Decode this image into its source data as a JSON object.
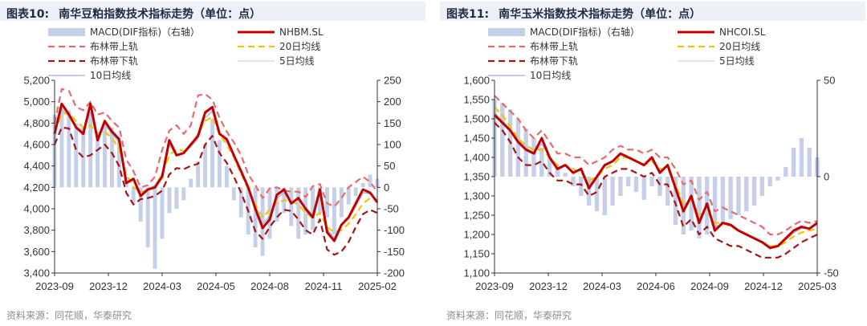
{
  "panels": [
    {
      "figure_label": "图表10:",
      "title": "南华豆粕指数技术指标走势（单位：点）",
      "source": "资料来源：同花顺，华泰研究",
      "legend": {
        "macd": "MACD(DIF指标)（右轴）",
        "main": "NHBM.SL",
        "upper": "布林带上轨",
        "ma20": "20日均线",
        "lower": "布林带下轨",
        "ma5": "5日均线",
        "ma10": "10日均线"
      },
      "colors": {
        "main": "#c00000",
        "upper": "#e86a6a",
        "lower": "#a31515",
        "ma20": "#f5c400",
        "ma5": "#dde3f0",
        "ma10": "#a8bbdc",
        "macd": "#c5d0e8"
      },
      "chart_data": {
        "type": "line",
        "left_axis": {
          "ticks": [
            "5,200",
            "5,000",
            "4,800",
            "4,600",
            "4,400",
            "4,200",
            "4,000",
            "3,800",
            "3,600",
            "3,400"
          ],
          "min": 3400,
          "max": 5200
        },
        "right_axis": {
          "ticks": [
            "250",
            "200",
            "150",
            "100",
            "50",
            "0",
            "-50",
            "-100",
            "-150",
            "-200"
          ],
          "min": -200,
          "max": 250
        },
        "x_ticks": [
          "2023-09",
          "2023-12",
          "2024-03",
          "2024-05",
          "2024-08",
          "2024-11",
          "2025-02"
        ],
        "series": [
          {
            "key": "main",
            "values": [
              4700,
              4980,
              4880,
              4760,
              4700,
              4980,
              4640,
              4820,
              4720,
              4650,
              4240,
              4280,
              4120,
              4180,
              4200,
              4300,
              4640,
              4500,
              4520,
              4600,
              4680,
              4900,
              4950,
              4700,
              4650,
              4500,
              4350,
              4200,
              4000,
              3820,
              3900,
              4130,
              4180,
              4050,
              4100,
              4000,
              3920,
              4180,
              3780,
              3700,
              3850,
              3920,
              4050,
              4180,
              4150,
              4060
            ]
          },
          {
            "key": "upper",
            "values": [
              4800,
              5120,
              5100,
              4950,
              4920,
              5000,
              4880,
              4900,
              4820,
              4760,
              4460,
              4350,
              4200,
              4220,
              4300,
              4550,
              4730,
              4780,
              4700,
              4780,
              5060,
              5070,
              5020,
              4850,
              4720,
              4620,
              4500,
              4320,
              4220,
              4100,
              4190,
              4200,
              4170,
              4160,
              4160,
              4110,
              4210,
              4230,
              4050,
              4020,
              4100,
              4200,
              4250,
              4300,
              4250,
              4160
            ]
          },
          {
            "key": "lower",
            "values": [
              4600,
              4760,
              4750,
              4550,
              4480,
              4500,
              4550,
              4600,
              4520,
              4400,
              4150,
              4040,
              4090,
              4100,
              4120,
              4170,
              4320,
              4380,
              4370,
              4400,
              4420,
              4600,
              4680,
              4520,
              4430,
              4300,
              4150,
              3980,
              3790,
              3720,
              3830,
              3920,
              3990,
              3980,
              3900,
              3800,
              3760,
              3900,
              3620,
              3570,
              3600,
              3690,
              3830,
              3950,
              3990,
              3960
            ]
          },
          {
            "key": "ma20",
            "values": [
              4720,
              4880,
              4900,
              4820,
              4760,
              4780,
              4700,
              4720,
              4660,
              4560,
              4320,
              4200,
              4160,
              4160,
              4200,
              4330,
              4500,
              4560,
              4540,
              4590,
              4700,
              4820,
              4860,
              4700,
              4600,
              4480,
              4330,
              4180,
              4040,
              3920,
              3990,
              4060,
              4080,
              4070,
              4040,
              3960,
              3920,
              3960,
              3830,
              3780,
              3800,
              3860,
              3950,
              4050,
              4100,
              4080
            ]
          },
          {
            "key": "ma5",
            "values": [
              4700,
              4960,
              4870,
              4760,
              4710,
              4960,
              4650,
              4810,
              4710,
              4640,
              4260,
              4280,
              4140,
              4180,
              4210,
              4310,
              4630,
              4500,
              4520,
              4590,
              4670,
              4880,
              4930,
              4700,
              4650,
              4500,
              4350,
              4210,
              4010,
              3830,
              3910,
              4120,
              4170,
              4050,
              4100,
              4010,
              3930,
              4170,
              3790,
              3710,
              3850,
              3920,
              4040,
              4170,
              4150,
              4070
            ]
          },
          {
            "key": "ma10",
            "values": [
              4710,
              4930,
              4860,
              4760,
              4730,
              4900,
              4660,
              4790,
              4700,
              4620,
              4290,
              4260,
              4160,
              4180,
              4220,
              4330,
              4600,
              4500,
              4520,
              4580,
              4660,
              4850,
              4910,
              4700,
              4630,
              4490,
              4340,
              4200,
              4030,
              3860,
              3930,
              4100,
              4150,
              4060,
              4090,
              4010,
              3940,
              4130,
              3810,
              3730,
              3850,
              3910,
              4020,
              4150,
              4140,
              4070
            ]
          }
        ],
        "macd": [
          170,
          190,
          180,
          150,
          140,
          170,
          130,
          150,
          140,
          110,
          20,
          -40,
          -80,
          -140,
          -190,
          -120,
          -60,
          -50,
          -30,
          20,
          60,
          100,
          160,
          110,
          50,
          -30,
          -70,
          -110,
          -140,
          -160,
          -120,
          -80,
          -60,
          -90,
          -120,
          -110,
          -100,
          -60,
          -70,
          -110,
          -70,
          -40,
          -20,
          10,
          30,
          20
        ]
      }
    },
    {
      "figure_label": "图表11:",
      "title": "南华玉米指数技术指标走势（单位：点）",
      "source": "资料来源：同花顺，华泰研究",
      "legend": {
        "macd": "MACD(DIF指标)（右轴）",
        "main": "NHCOI.SL",
        "upper": "布林带上轨",
        "ma20": "20日均线",
        "lower": "布林带下轨",
        "ma5": "5日均线",
        "ma10": "10日均线"
      },
      "colors": {
        "main": "#c00000",
        "upper": "#e86a6a",
        "lower": "#a31515",
        "ma20": "#f5c400",
        "ma5": "#dde3f0",
        "ma10": "#a8bbdc",
        "macd": "#c5d0e8"
      },
      "chart_data": {
        "type": "line",
        "left_axis": {
          "ticks": [
            "1,600",
            "1,550",
            "1,500",
            "1,450",
            "1,400",
            "1,350",
            "1,300",
            "1,250",
            "1,200",
            "1,150",
            "1,100"
          ],
          "min": 1100,
          "max": 1600
        },
        "right_axis": {
          "ticks": [
            "50",
            "0",
            "-50"
          ],
          "min": -50,
          "max": 50
        },
        "x_ticks": [
          "2023-09",
          "2023-12",
          "2024-03",
          "2024-06",
          "2024-09",
          "2024-12",
          "2025-03"
        ],
        "series": [
          {
            "key": "main",
            "values": [
              1510,
              1490,
              1470,
              1440,
              1420,
              1410,
              1450,
              1400,
              1370,
              1380,
              1360,
              1370,
              1320,
              1350,
              1380,
              1390,
              1410,
              1400,
              1390,
              1380,
              1400,
              1360,
              1380,
              1320,
              1260,
              1300,
              1230,
              1280,
              1210,
              1230,
              1225,
              1210,
              1200,
              1190,
              1180,
              1165,
              1170,
              1190,
              1210,
              1220,
              1215,
              1230
            ]
          },
          {
            "key": "upper",
            "values": [
              1560,
              1540,
              1520,
              1500,
              1470,
              1450,
              1470,
              1440,
              1410,
              1410,
              1400,
              1400,
              1380,
              1390,
              1400,
              1420,
              1430,
              1420,
              1420,
              1410,
              1420,
              1400,
              1400,
              1370,
              1330,
              1340,
              1290,
              1310,
              1260,
              1270,
              1260,
              1250,
              1240,
              1230,
              1220,
              1200,
              1200,
              1210,
              1225,
              1235,
              1230,
              1235
            ]
          },
          {
            "key": "lower",
            "values": [
              1490,
              1470,
              1440,
              1400,
              1380,
              1380,
              1390,
              1360,
              1340,
              1340,
              1330,
              1330,
              1300,
              1310,
              1350,
              1360,
              1370,
              1370,
              1360,
              1350,
              1360,
              1330,
              1330,
              1280,
              1220,
              1240,
              1200,
              1220,
              1190,
              1180,
              1170,
              1170,
              1160,
              1150,
              1140,
              1140,
              1140,
              1150,
              1165,
              1180,
              1190,
              1200
            ]
          },
          {
            "key": "ma20",
            "values": [
              1530,
              1510,
              1480,
              1450,
              1430,
              1420,
              1420,
              1400,
              1380,
              1380,
              1370,
              1360,
              1340,
              1350,
              1370,
              1380,
              1400,
              1400,
              1390,
              1380,
              1390,
              1370,
              1370,
              1330,
              1280,
              1290,
              1250,
              1260,
              1230,
              1230,
              1220,
              1210,
              1200,
              1190,
              1180,
              1170,
              1170,
              1180,
              1195,
              1205,
              1210,
              1215
            ]
          },
          {
            "key": "ma5",
            "values": [
              1510,
              1490,
              1470,
              1440,
              1420,
              1410,
              1440,
              1400,
              1370,
              1380,
              1360,
              1370,
              1325,
              1350,
              1380,
              1390,
              1410,
              1400,
              1390,
              1380,
              1400,
              1360,
              1380,
              1320,
              1265,
              1300,
              1235,
              1275,
              1215,
              1230,
              1225,
              1210,
              1200,
              1190,
              1180,
              1167,
              1170,
              1190,
              1208,
              1220,
              1216,
              1228
            ]
          },
          {
            "key": "ma10",
            "values": [
              1515,
              1495,
              1472,
              1445,
              1424,
              1412,
              1435,
              1402,
              1374,
              1380,
              1362,
              1367,
              1330,
              1350,
              1378,
              1388,
              1406,
              1400,
              1390,
              1381,
              1396,
              1364,
              1376,
              1326,
              1272,
              1298,
              1240,
              1270,
              1220,
              1228,
              1222,
              1210,
              1200,
              1190,
              1180,
              1170,
              1170,
              1186,
              1204,
              1216,
              1215,
              1226
            ]
          }
        ],
        "macd": [
          40,
          38,
          35,
          30,
          25,
          20,
          15,
          10,
          5,
          2,
          -5,
          -10,
          -15,
          -18,
          -20,
          -15,
          -10,
          -5,
          -8,
          -12,
          -5,
          -10,
          -15,
          -25,
          -30,
          -28,
          -32,
          -30,
          -28,
          -25,
          -22,
          -20,
          -18,
          -15,
          -10,
          -5,
          -2,
          5,
          15,
          20,
          15,
          10
        ]
      }
    }
  ]
}
